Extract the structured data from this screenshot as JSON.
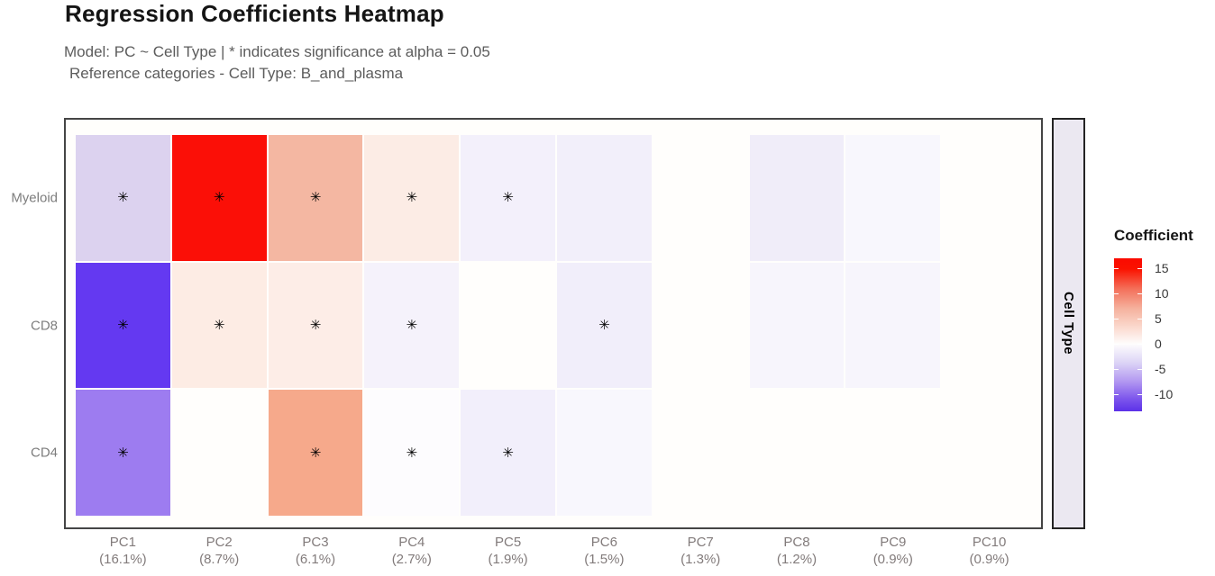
{
  "header": {
    "title": "Regression Coefficients Heatmap",
    "subtitle_line1": "Model: PC ~ Cell Type | * indicates significance at alpha = 0.05",
    "subtitle_line2": "Reference categories - Cell Type: B_and_plasma"
  },
  "facet_strip": {
    "label": "Cell Type"
  },
  "legend": {
    "title": "Coefficient",
    "ticks": [
      "15",
      "10",
      "5",
      "0",
      "-5",
      "-10"
    ],
    "significance_marker": "✳",
    "gradient_high_color": "#fb0f07",
    "gradient_mid_color": "#ffffff",
    "gradient_low_color": "#5d33e9"
  },
  "chart_data": {
    "type": "heatmap",
    "title": "Regression Coefficients Heatmap",
    "x_axis_columns": [
      {
        "pc": "PC1",
        "variance": "(16.1%)"
      },
      {
        "pc": "PC2",
        "variance": "(8.7%)"
      },
      {
        "pc": "PC3",
        "variance": "(6.1%)"
      },
      {
        "pc": "PC4",
        "variance": "(2.7%)"
      },
      {
        "pc": "PC5",
        "variance": "(1.9%)"
      },
      {
        "pc": "PC6",
        "variance": "(1.5%)"
      },
      {
        "pc": "PC7",
        "variance": "(1.3%)"
      },
      {
        "pc": "PC8",
        "variance": "(1.2%)"
      },
      {
        "pc": "PC9",
        "variance": "(0.9%)"
      },
      {
        "pc": "PC10",
        "variance": "(0.9%)"
      }
    ],
    "y_axis_label": "Cell Type",
    "reference_category": "B_and_plasma",
    "alpha": 0.05,
    "colorbar_range": [
      -13,
      17
    ],
    "legend_position": "right",
    "series": [
      {
        "name": "Myeloid",
        "values": [
          -3.0,
          16.0,
          5.0,
          1.4,
          -1.1,
          -1.1,
          0.0,
          -1.3,
          -0.6,
          0.0
        ],
        "significant": [
          true,
          true,
          true,
          true,
          true,
          false,
          false,
          false,
          false,
          false
        ],
        "colors": [
          "#dcd2ef",
          "#fb0f07",
          "#f4b7a2",
          "#fcece5",
          "#f3f0fb",
          "#f2effa",
          "#fffefc",
          "#f0edf9",
          "#f8f7fd",
          "#fffefc"
        ]
      },
      {
        "name": "CD8",
        "values": [
          -12.5,
          1.4,
          1.3,
          -1.0,
          0.0,
          -1.4,
          0.0,
          -0.8,
          -0.8,
          0.0
        ],
        "significant": [
          true,
          true,
          true,
          true,
          false,
          true,
          false,
          false,
          false,
          false
        ],
        "colors": [
          "#6439f1",
          "#fdece4",
          "#fdede7",
          "#f5f2fb",
          "#fffefc",
          "#f1eefa",
          "#fffefc",
          "#f7f5fc",
          "#f7f5fc",
          "#fffefc"
        ]
      },
      {
        "name": "CD4",
        "values": [
          -7.5,
          0.0,
          6.0,
          -0.3,
          -1.2,
          -0.6,
          0.0,
          0.0,
          0.0,
          0.0
        ],
        "significant": [
          true,
          false,
          true,
          true,
          true,
          false,
          false,
          false,
          false,
          false
        ],
        "colors": [
          "#9d7cf0",
          "#fffefc",
          "#f6a98b",
          "#fdfcfe",
          "#f2effb",
          "#f8f7fd",
          "#fffefc",
          "#fffefc",
          "#fffefc",
          "#fffefc"
        ]
      }
    ]
  }
}
